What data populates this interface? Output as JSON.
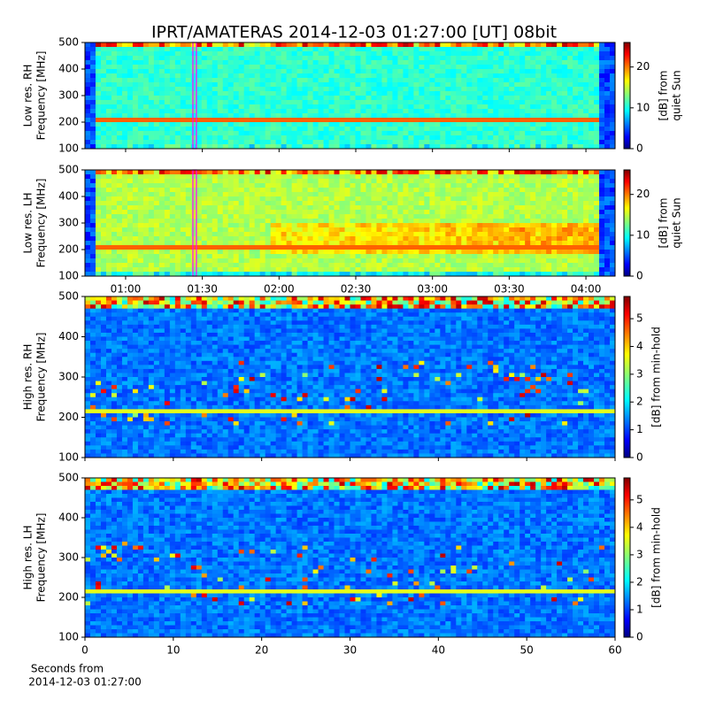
{
  "title": "IPRT/AMATERAS 2014-12-03 01:27:00 [UT]   08bit",
  "chart_data": [
    {
      "type": "spectrogram",
      "colormap": "jet",
      "ylabel": [
        "Low res. RH",
        "Frequency [MHz]"
      ],
      "ylim": [
        100,
        500
      ],
      "yticks": [
        100,
        200,
        300,
        400,
        500
      ],
      "xlim": [
        44.1,
        251.4
      ],
      "show_xtick_labels": false,
      "xticks": [
        {
          "value": 60,
          "label": "01:00"
        },
        {
          "value": 90,
          "label": "01:30"
        },
        {
          "value": 120,
          "label": "02:00"
        },
        {
          "value": 150,
          "label": "02:30"
        },
        {
          "value": 180,
          "label": "03:00"
        },
        {
          "value": 210,
          "label": "03:30"
        },
        {
          "value": 240,
          "label": "04:00"
        }
      ],
      "cursor_x": 87,
      "cursor_color": "#ff00ff",
      "colorbar": {
        "label": [
          "[dB] from",
          "quiet Sun"
        ],
        "lim": [
          0,
          26
        ],
        "ticks": [
          0,
          10,
          20
        ]
      }
    },
    {
      "type": "spectrogram",
      "colormap": "jet",
      "ylabel": [
        "Low res. LH",
        "Frequency [MHz]"
      ],
      "ylim": [
        100,
        500
      ],
      "yticks": [
        100,
        200,
        300,
        400,
        500
      ],
      "xlim": [
        44.1,
        251.4
      ],
      "show_xtick_labels": true,
      "xticks": [
        {
          "value": 60,
          "label": "01:00"
        },
        {
          "value": 90,
          "label": "01:30"
        },
        {
          "value": 120,
          "label": "02:00"
        },
        {
          "value": 150,
          "label": "02:30"
        },
        {
          "value": 180,
          "label": "03:00"
        },
        {
          "value": 210,
          "label": "03:30"
        },
        {
          "value": 240,
          "label": "04:00"
        }
      ],
      "cursor_x": 87,
      "cursor_color": "#ff00ff",
      "colorbar": {
        "label": [
          "[dB] from",
          "quiet Sun"
        ],
        "lim": [
          0,
          26
        ],
        "ticks": [
          0,
          10,
          20
        ]
      }
    },
    {
      "type": "spectrogram",
      "colormap": "jet",
      "ylabel": [
        "High res. RH",
        "Frequency [MHz]"
      ],
      "ylim": [
        100,
        500
      ],
      "yticks": [
        100,
        200,
        300,
        400,
        500
      ],
      "xlim": [
        0,
        60
      ],
      "show_xtick_labels": false,
      "xticks": [
        0,
        10,
        20,
        30,
        40,
        50,
        60
      ],
      "colorbar": {
        "label": [
          "[dB] from min-hold"
        ],
        "lim": [
          0,
          5.8
        ],
        "ticks": [
          0,
          1,
          2,
          3,
          4,
          5
        ]
      }
    },
    {
      "type": "spectrogram",
      "colormap": "jet",
      "ylabel": [
        "High res. LH",
        "Frequency [MHz]"
      ],
      "ylim": [
        100,
        500
      ],
      "yticks": [
        100,
        200,
        300,
        400,
        500
      ],
      "xlim": [
        0,
        60
      ],
      "show_xtick_labels": true,
      "xticks": [
        0,
        10,
        20,
        30,
        40,
        50,
        60
      ],
      "xlabel": [
        "Seconds from",
        "2014-12-03 01:27:00"
      ],
      "colorbar": {
        "label": [
          "[dB] from min-hold"
        ],
        "lim": [
          0,
          5.8
        ],
        "ticks": [
          0,
          1,
          2,
          3,
          4,
          5
        ]
      }
    }
  ]
}
